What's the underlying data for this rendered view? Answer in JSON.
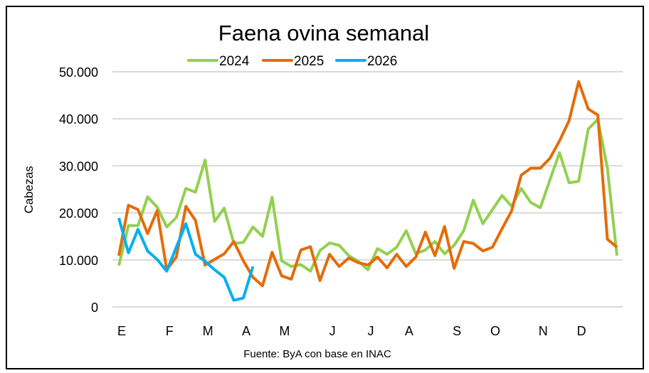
{
  "chart_data": {
    "type": "line",
    "title": "Faena ovina semanal",
    "ylabel": "Cabezas",
    "xlabel": "",
    "source": "Fuente: ByA con base en INAC",
    "ylim": [
      0,
      50000
    ],
    "yticks": [
      0,
      10000,
      20000,
      30000,
      40000,
      50000
    ],
    "ytick_labels": [
      "0",
      "10.000",
      "20.000",
      "30.000",
      "40.000",
      "50.000"
    ],
    "grid": true,
    "legend_position": "top",
    "x_ticks": [
      {
        "label": "E",
        "week": 1
      },
      {
        "label": "F",
        "week": 6
      },
      {
        "label": "M",
        "week": 10
      },
      {
        "label": "A",
        "week": 14
      },
      {
        "label": "M",
        "week": 18
      },
      {
        "label": "J",
        "week": 23
      },
      {
        "label": "J",
        "week": 27
      },
      {
        "label": "A",
        "week": 31
      },
      {
        "label": "S",
        "week": 36
      },
      {
        "label": "O",
        "week": 40
      },
      {
        "label": "N",
        "week": 45
      },
      {
        "label": "D",
        "week": 49
      }
    ],
    "x_range": [
      1,
      53
    ],
    "series": [
      {
        "name": "2024",
        "color": "#92D050",
        "values": [
          8800,
          17300,
          17300,
          23400,
          21200,
          17000,
          19000,
          25200,
          24400,
          31200,
          18200,
          21000,
          13500,
          13700,
          17000,
          15000,
          23300,
          9800,
          8600,
          9000,
          7600,
          12000,
          13600,
          13100,
          10900,
          9700,
          7900,
          12400,
          11200,
          12700,
          16200,
          11300,
          12100,
          13900,
          11300,
          13100,
          16200,
          22700,
          17700,
          20700,
          23700,
          21400,
          25200,
          22200,
          21100,
          27000,
          32800,
          26400,
          26700,
          37800,
          39900,
          29500,
          10900
        ]
      },
      {
        "name": "2025",
        "color": "#E46C0A",
        "values": [
          10900,
          21600,
          20700,
          15600,
          20500,
          7900,
          10600,
          21400,
          18400,
          8900,
          10100,
          11300,
          13900,
          9800,
          6300,
          4500,
          11600,
          6600,
          5900,
          12100,
          12800,
          5600,
          11200,
          8600,
          10400,
          9400,
          8900,
          10600,
          8300,
          11200,
          8600,
          10600,
          15900,
          10900,
          17100,
          8200,
          13900,
          13500,
          11900,
          12700,
          16600,
          20400,
          28000,
          29500,
          29500,
          31600,
          35300,
          39600,
          47900,
          42100,
          40800,
          14400,
          12700
        ]
      },
      {
        "name": "2026",
        "color": "#00B0F0",
        "values": [
          18900,
          11500,
          16500,
          11900,
          10100,
          7600,
          12700,
          17700,
          11200,
          9700,
          7900,
          6300,
          1400,
          1900,
          8600
        ]
      }
    ]
  }
}
